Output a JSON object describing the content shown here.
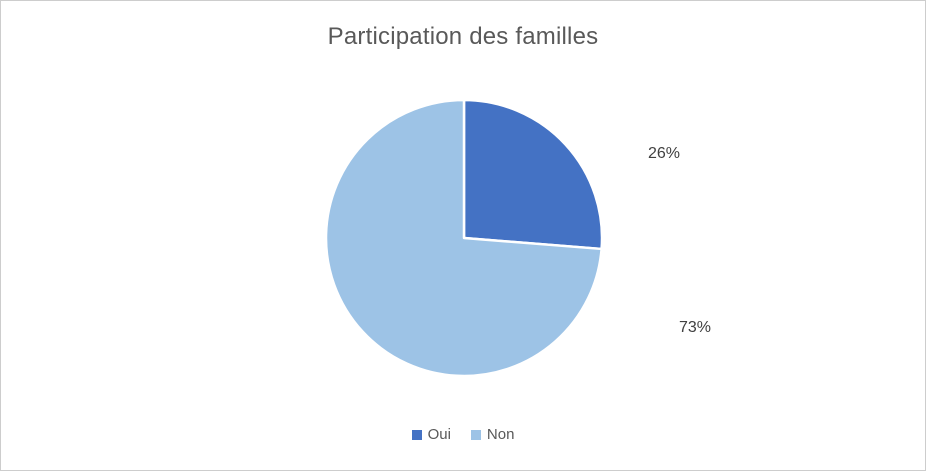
{
  "chart_data": {
    "type": "pie",
    "title": "Participation des familles",
    "categories": [
      "Oui",
      "Non"
    ],
    "values": [
      26,
      73
    ],
    "data_labels": [
      "26%",
      "73%"
    ],
    "colors": [
      "#4472C4",
      "#9DC3E6"
    ],
    "slice_border_color": "#FFFFFF",
    "start_angle_deg": 0,
    "direction": "clockwise",
    "legend_position": "bottom",
    "label_position": "outside-end"
  },
  "title_color": "#595959",
  "label_color": "#404040",
  "legend": {
    "items": [
      {
        "label": "Oui",
        "color": "#4472C4"
      },
      {
        "label": "Non",
        "color": "#9DC3E6"
      }
    ]
  },
  "data_labels": {
    "oui": "26%",
    "non": "73%"
  }
}
